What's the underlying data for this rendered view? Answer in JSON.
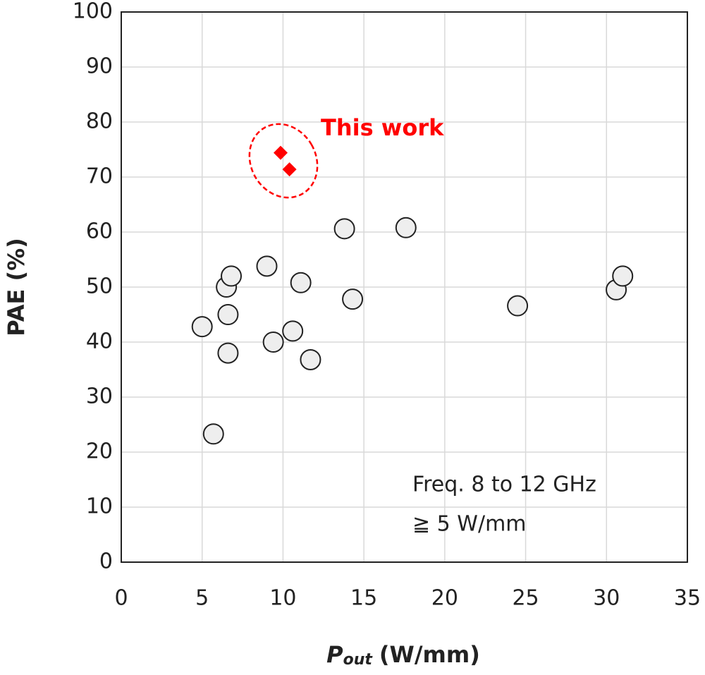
{
  "chart_data": {
    "type": "scatter",
    "x_label": {
      "symbol": "P",
      "subscript": "out",
      "unit": "(W/mm)"
    },
    "y_label": "PAE (%)",
    "xlim": [
      0,
      35
    ],
    "xticks": [
      0,
      5,
      10,
      15,
      20,
      25,
      30,
      35
    ],
    "ylim": [
      0,
      100
    ],
    "yticks": [
      0,
      10,
      20,
      30,
      40,
      50,
      60,
      70,
      80,
      90,
      100
    ],
    "grid": true,
    "series": [
      {
        "marker": "circle",
        "color": "#eeeeee",
        "x": [
          5.0,
          5.7,
          6.5,
          6.6,
          6.6,
          6.8,
          9.0,
          9.4,
          10.6,
          11.1,
          11.7,
          13.8,
          14.3,
          17.6,
          24.5,
          30.6,
          31.0
        ],
        "values": [
          42.8,
          23.3,
          50,
          45,
          38,
          52,
          53.8,
          40,
          42,
          50.8,
          36.8,
          60.6,
          47.8,
          60.8,
          46.6,
          49.5,
          52
        ]
      },
      {
        "marker": "diamond",
        "color": "#ff0000",
        "x": [
          9.85,
          10.4
        ],
        "values": [
          74.4,
          71.4
        ]
      }
    ],
    "annotations": [
      "This work",
      "Freq. 8 to 12 GHz",
      "≧ 5 W/mm"
    ]
  }
}
